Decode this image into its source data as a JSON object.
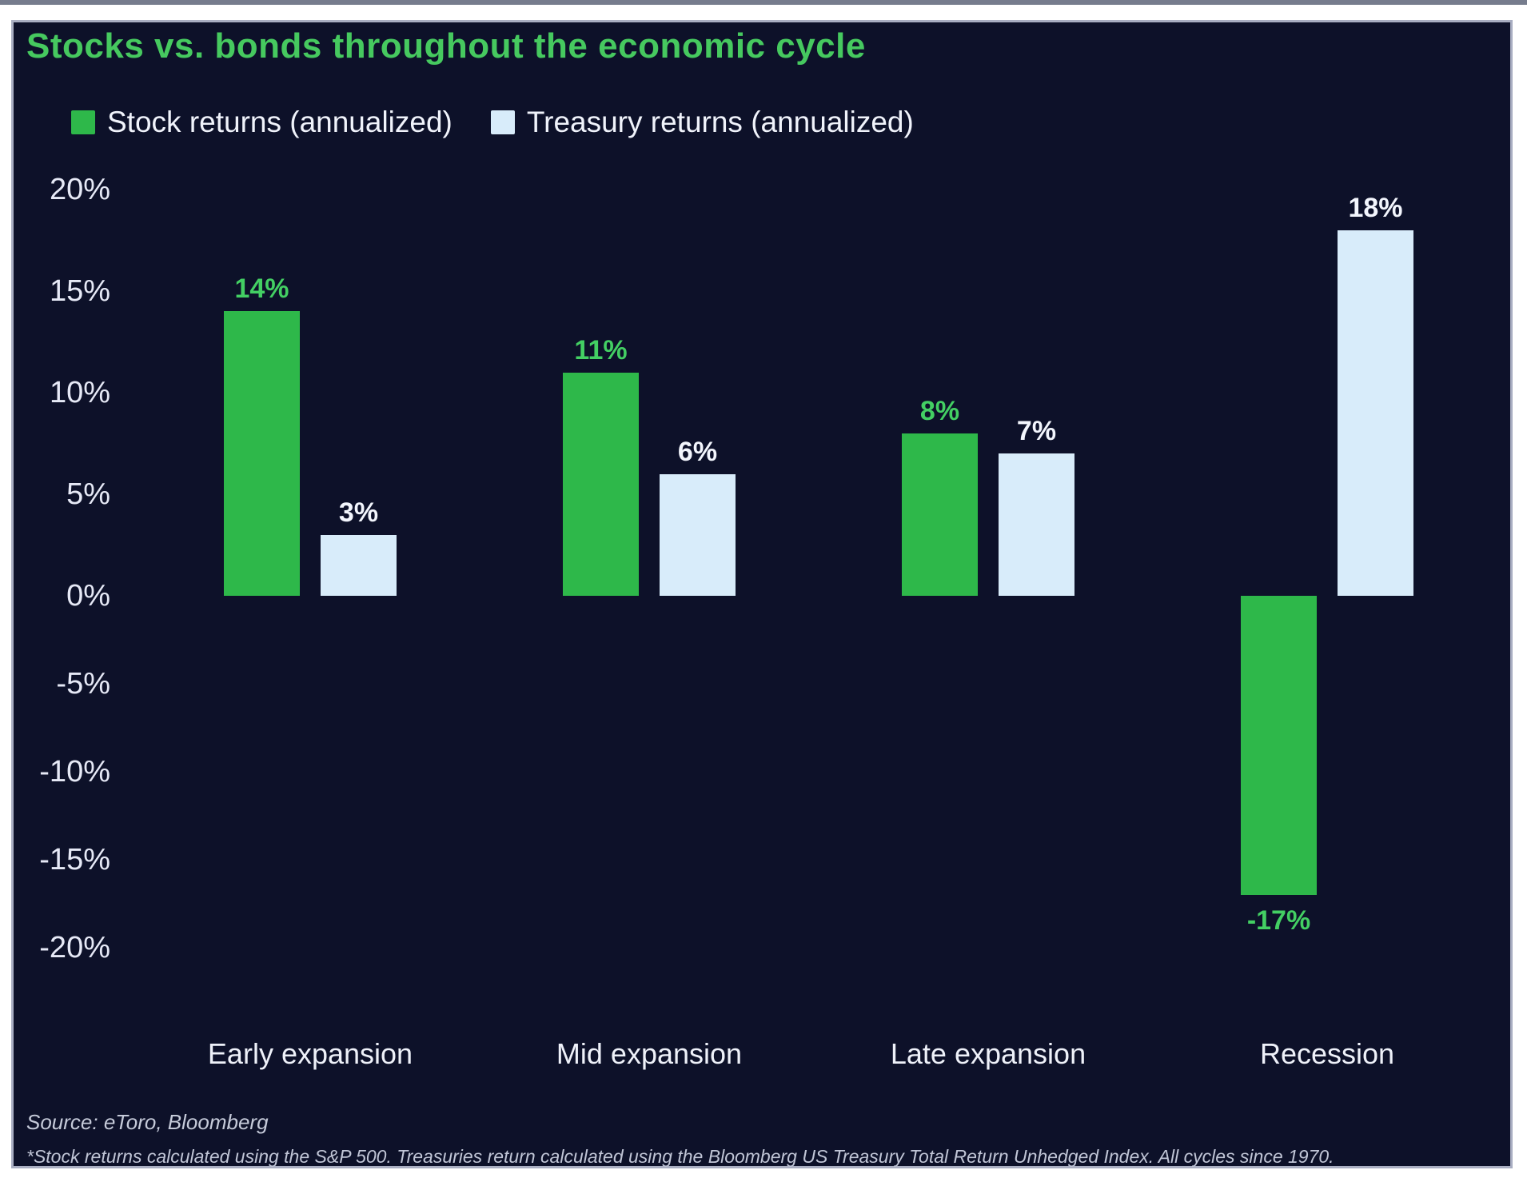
{
  "title": "Stocks vs. bonds throughout the economic cycle",
  "legend": [
    {
      "label": "Stock returns (annualized)",
      "swatch_color": "#2eb84a"
    },
    {
      "label": "Treasury returns (annualized)",
      "swatch_color": "#d8ecfa"
    }
  ],
  "chart_data": {
    "type": "bar",
    "title": "Stocks vs. bonds throughout the economic cycle",
    "categories": [
      "Early expansion",
      "Mid expansion",
      "Late expansion",
      "Recession"
    ],
    "series": [
      {
        "name": "Stock returns (annualized)",
        "values": [
          14,
          11,
          8,
          -17
        ],
        "labels": [
          "14%",
          "11%",
          "8%",
          "-17%"
        ],
        "color": "#2eb84a",
        "label_color": "#43cf63"
      },
      {
        "name": "Treasury returns (annualized)",
        "values": [
          3,
          6,
          7,
          18
        ],
        "labels": [
          "3%",
          "6%",
          "7%",
          "18%"
        ],
        "color": "#d8ecfa",
        "label_color": "#f3f6fd"
      }
    ],
    "y_ticks": [
      {
        "v": 20,
        "label": "20%"
      },
      {
        "v": 15,
        "label": "15%"
      },
      {
        "v": 10,
        "label": "10%"
      },
      {
        "v": 5,
        "label": "5%"
      },
      {
        "v": 0,
        "label": "0%"
      },
      {
        "v": -5,
        "label": "-5%"
      },
      {
        "v": -10,
        "label": "-10%"
      },
      {
        "v": -15,
        "label": "-15%"
      },
      {
        "v": -20,
        "label": "-20%"
      }
    ],
    "ylim": [
      -20,
      20
    ],
    "xlabel": "",
    "ylabel": "",
    "grid": false,
    "legend_position": "top-left"
  },
  "source": "Source: eToro, Bloomberg",
  "footnote": "*Stock returns calculated using the S&P 500. Treasuries return calculated using the Bloomberg US Treasury Total Return Unhedged Index. All cycles since 1970.",
  "colors": {
    "page": "#ffffff",
    "background": "#0d1129",
    "panel_border": "#a9aec2",
    "title": "#46c95f",
    "tick_text": "#e6e9f6",
    "category_text": "#eef1f9",
    "legend_text": "#f0f3fb",
    "source_text": "#c5cad9",
    "footnote_text": "#c0c5d6"
  }
}
